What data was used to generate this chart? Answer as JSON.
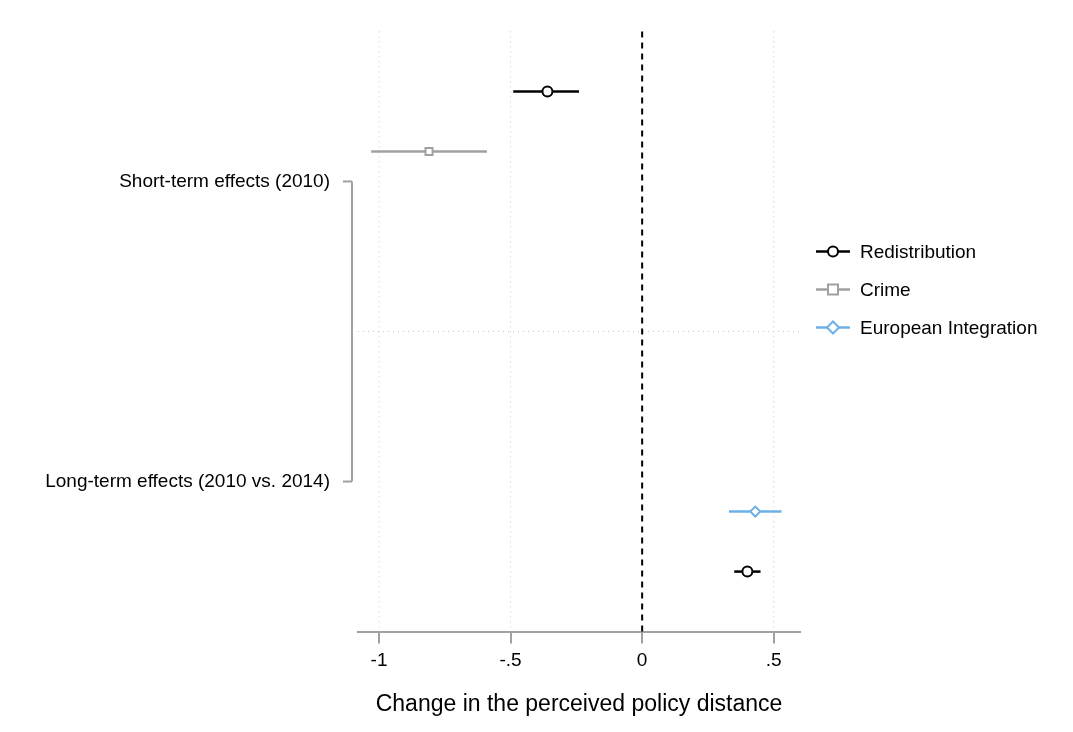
{
  "chart_data": {
    "type": "scatter",
    "orientation": "horizontal",
    "xlabel": "Change in the perceived policy distance",
    "categories": [
      "Short-term effects (2010)",
      "Long-term effects (2010 vs. 2014)"
    ],
    "series": [
      {
        "name": "Redistribution",
        "color": "#000000",
        "marker": "circle",
        "values": [
          -0.36,
          0.4
        ],
        "errors": [
          [
            -0.49,
            -0.24
          ],
          [
            0.35,
            0.45
          ]
        ]
      },
      {
        "name": "Crime",
        "color": "#a0a0a0",
        "marker": "square",
        "values": [
          -0.81,
          null
        ],
        "errors": [
          [
            -1.03,
            -0.59
          ],
          null
        ]
      },
      {
        "name": "European Integration",
        "color": "#6cb0e8",
        "marker": "diamond",
        "values": [
          null,
          0.43
        ],
        "errors": [
          null,
          [
            0.33,
            0.53
          ]
        ]
      }
    ],
    "xlim": [
      -1.08,
      0.6
    ],
    "xticks": [
      {
        "value": -1,
        "label": "-1"
      },
      {
        "value": -0.5,
        "label": "-.5"
      },
      0,
      {
        "value": 0.5,
        "label": ".5"
      }
    ],
    "ref_lines": [
      {
        "axis": "x",
        "value": 0,
        "color": "#000000",
        "line_style": "dashed"
      }
    ],
    "grid": true,
    "legend": "right"
  }
}
